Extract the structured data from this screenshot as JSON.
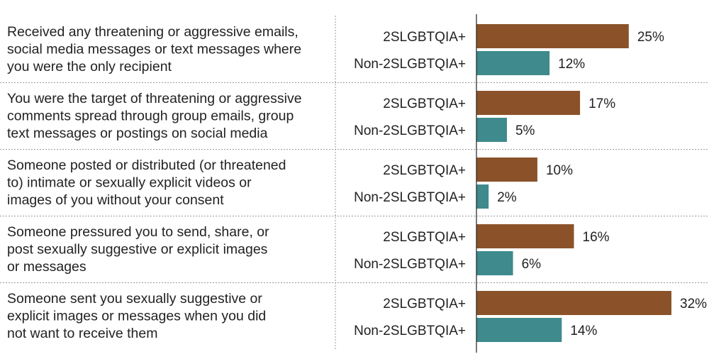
{
  "chart_data": {
    "type": "bar",
    "orientation": "horizontal",
    "unit": "%",
    "xlim": [
      0,
      32
    ],
    "series": [
      {
        "name": "2SLGBTQIA+",
        "color": "#8b5229",
        "values": [
          25,
          17,
          10,
          16,
          32
        ]
      },
      {
        "name": "Non-2SLGBTQIA+",
        "color": "#3e8a8c",
        "values": [
          12,
          5,
          2,
          6,
          14
        ]
      }
    ],
    "categories": [
      [
        "Received any threatening or aggressive emails,",
        "social media messages or text messages where",
        "you were the only recipient"
      ],
      [
        "You were the target of threatening or aggressive",
        "comments spread through group emails, group",
        "text messages or postings on social media"
      ],
      [
        "Someone posted or distributed (or threatened",
        "to) intimate or sexually explicit videos or",
        "images of you without your consent"
      ],
      [
        "Someone pressured you to send, share, or",
        "post sexually suggestive or explicit images",
        "or messages"
      ],
      [
        "Someone sent you sexually suggestive or",
        "explicit images or messages when you did",
        "not want to receive them"
      ]
    ]
  }
}
